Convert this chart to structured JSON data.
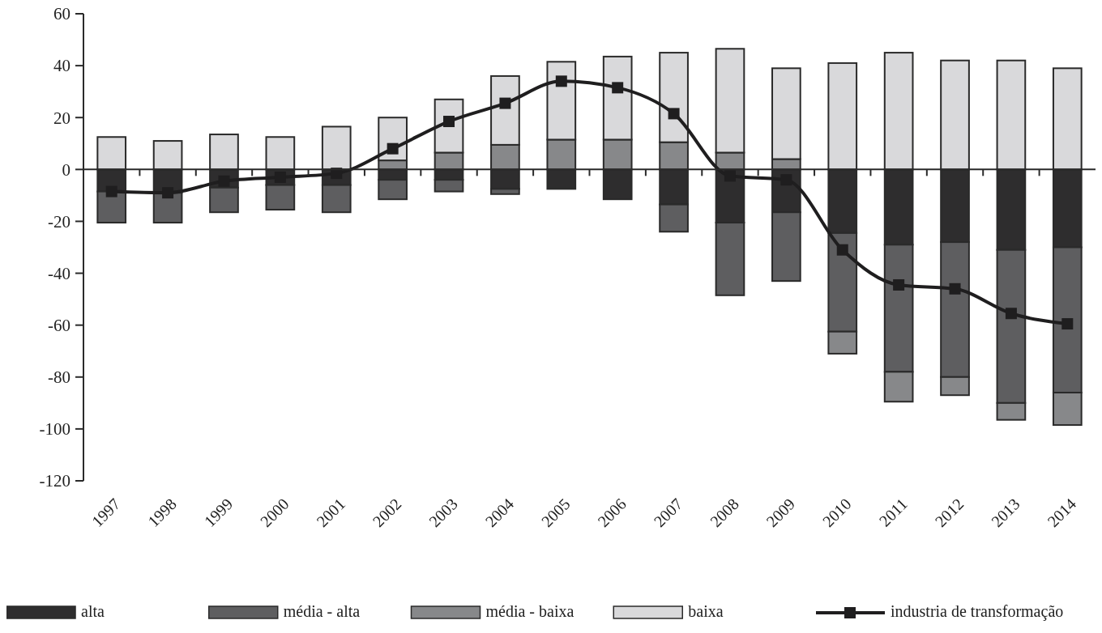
{
  "chart_data": {
    "type": "bar",
    "stacked": true,
    "categories": [
      "1997",
      "1998",
      "1999",
      "2000",
      "2001",
      "2002",
      "2003",
      "2004",
      "2005",
      "2006",
      "2007",
      "2008",
      "2009",
      "2010",
      "2011",
      "2012",
      "2013",
      "2014"
    ],
    "ylim": [
      -120,
      60
    ],
    "yticks": [
      -120,
      -100,
      -80,
      -60,
      -40,
      -20,
      0,
      20,
      40,
      60
    ],
    "legend": "bottom",
    "series": [
      {
        "name": "alta",
        "color": "#2e2d2e",
        "values": [
          -8.5,
          -9,
          -7,
          -6,
          -6,
          -4,
          -4,
          -7.5,
          -7.5,
          -11.5,
          -13.5,
          -20.5,
          -16.5,
          -24.5,
          -29,
          -28,
          -31,
          -30
        ]
      },
      {
        "name": "média - alta",
        "color": "#5e5e60",
        "values": [
          -12,
          -11.5,
          -9.5,
          -9.5,
          -10.5,
          -7.5,
          -4.5,
          -2,
          null,
          null,
          -10.5,
          -28,
          -26.5,
          -38,
          -49,
          -52,
          -59,
          -56
        ]
      },
      {
        "name": "média - baixa",
        "color": "#87888a",
        "values": [
          null,
          null,
          null,
          null,
          null,
          3.5,
          6.5,
          9.5,
          11.5,
          11.5,
          10.5,
          6.5,
          4,
          -8.5,
          -11.5,
          -7,
          -6.5,
          -12.5
        ]
      },
      {
        "name": "baixa",
        "color": "#d9d9db",
        "values": [
          12.5,
          11,
          13.5,
          12.5,
          16.5,
          16.5,
          20.5,
          26.5,
          30,
          32,
          34.5,
          40,
          35,
          41,
          45,
          42,
          42,
          39
        ]
      },
      {
        "name": "industria de transformação",
        "type": "line",
        "color": "#1f1e1f",
        "marker": "square",
        "values": [
          -8.5,
          -9,
          -4.5,
          -3,
          -1.5,
          8,
          18.5,
          25.5,
          34,
          31.5,
          21.5,
          -2.5,
          -4,
          -31,
          -44.5,
          -46,
          -55.5,
          -59.5
        ]
      }
    ]
  }
}
